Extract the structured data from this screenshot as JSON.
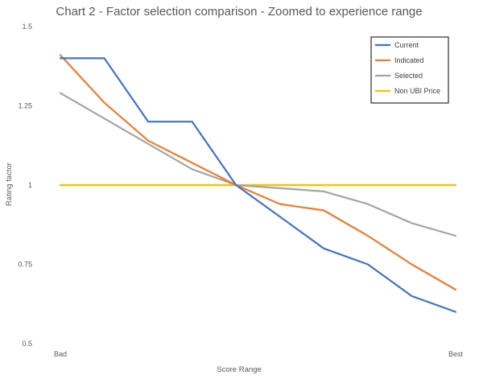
{
  "chart_data": {
    "type": "line",
    "title": "Chart 2 - Factor selection comparison - Zoomed to experience range",
    "xlabel": "Score Range",
    "ylabel": "Rating factor",
    "x_tick_labels": [
      "Bad",
      "Best"
    ],
    "x_points": 10,
    "ylim": [
      0.5,
      1.5
    ],
    "y_ticks": [
      0.5,
      0.75,
      1,
      1.25,
      1.5
    ],
    "y_tick_labels": [
      "0.5",
      "0.75",
      "1",
      "1.25",
      "1.5"
    ],
    "grid": false,
    "legend_position": "top-right",
    "series": [
      {
        "name": "Current",
        "color": "#4472C4",
        "values": [
          1.4,
          1.4,
          1.2,
          1.2,
          1.0,
          0.9,
          0.8,
          0.75,
          0.65,
          0.6
        ]
      },
      {
        "name": "Indicated",
        "color": "#ED7D31",
        "values": [
          1.41,
          1.26,
          1.14,
          1.07,
          1.0,
          0.94,
          0.92,
          0.84,
          0.75,
          0.67
        ]
      },
      {
        "name": "Selected",
        "color": "#A5A5A5",
        "values": [
          1.29,
          1.21,
          1.13,
          1.05,
          1.0,
          0.99,
          0.98,
          0.94,
          0.88,
          0.84
        ]
      },
      {
        "name": "Non UBI Price",
        "color": "#FFC000",
        "values": [
          1.0,
          1.0,
          1.0,
          1.0,
          1.0,
          1.0,
          1.0,
          1.0,
          1.0,
          1.0
        ]
      }
    ]
  }
}
